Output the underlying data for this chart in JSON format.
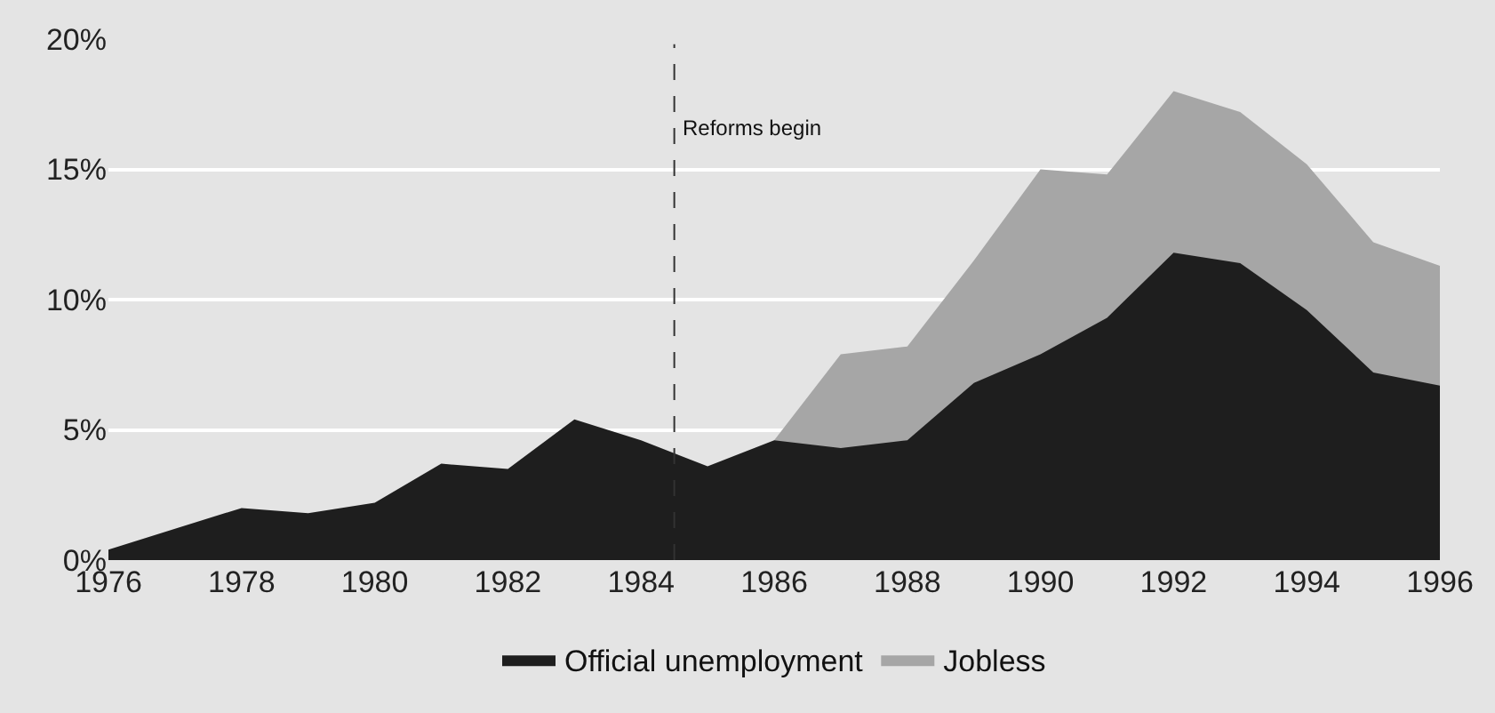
{
  "chart_data": {
    "type": "area",
    "stacked": true,
    "x": [
      1976,
      1977,
      1978,
      1979,
      1980,
      1981,
      1982,
      1983,
      1984,
      1985,
      1986,
      1987,
      1988,
      1989,
      1990,
      1991,
      1992,
      1993,
      1994,
      1995,
      1996
    ],
    "series": [
      {
        "name": "Official unemployment",
        "color": "#1e1e1e",
        "values": [
          0.4,
          1.2,
          2.0,
          1.8,
          2.2,
          3.7,
          3.5,
          5.4,
          4.6,
          3.6,
          4.6,
          4.3,
          4.6,
          6.8,
          7.9,
          9.3,
          11.8,
          11.4,
          9.6,
          7.2,
          6.7
        ]
      },
      {
        "name": "Jobless",
        "color": "#a6a6a6",
        "values": [
          null,
          null,
          null,
          null,
          null,
          null,
          null,
          null,
          null,
          null,
          0,
          3.6,
          3.6,
          4.7,
          7.1,
          5.5,
          6.2,
          5.8,
          5.6,
          5.0,
          4.6
        ]
      }
    ],
    "xlim": [
      1976,
      1996
    ],
    "xticks": [
      1976,
      1978,
      1980,
      1982,
      1984,
      1986,
      1988,
      1990,
      1992,
      1994,
      1996
    ],
    "ylim": [
      0,
      20
    ],
    "yticks": [
      {
        "value": 0,
        "label": "0%"
      },
      {
        "value": 5,
        "label": "5%"
      },
      {
        "value": 10,
        "label": "10%"
      },
      {
        "value": 15,
        "label": "15%"
      },
      {
        "value": 20,
        "label": "20%"
      }
    ],
    "grid": "y",
    "legend": "bottom",
    "ref_lines": [
      {
        "axis": "x",
        "value": 1984.5,
        "label": "Reforms begin",
        "color": "#333333",
        "line_style": "dashed"
      }
    ]
  }
}
